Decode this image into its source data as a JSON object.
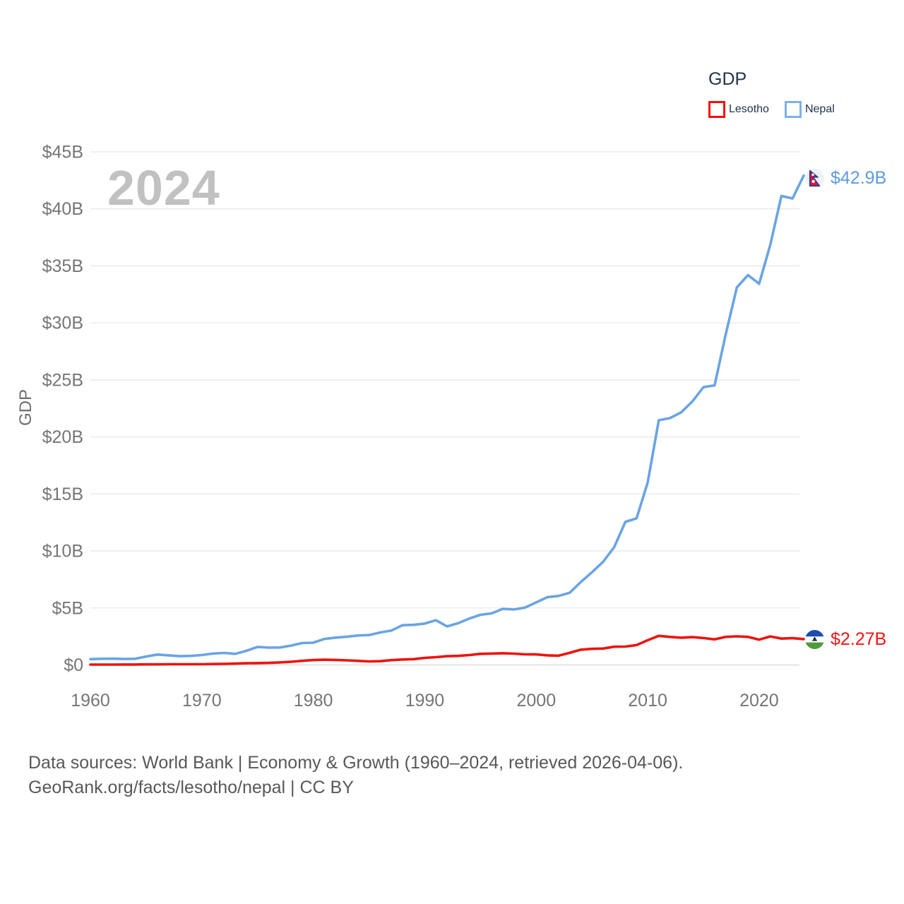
{
  "watermark": "2024",
  "legend": {
    "title": "GDP",
    "items": [
      {
        "label": "Lesotho",
        "color": "#f70d0d"
      },
      {
        "label": "Nepal",
        "color": "#7cb1e8"
      }
    ]
  },
  "end_labels": {
    "nepal": "$42.9B",
    "lesotho": "$2.27B"
  },
  "footer": {
    "line1": "Data sources: World Bank | Economy & Growth (1960–2024, retrieved 2026-04-06).",
    "line2": "GeoRank.org/facts/lesotho/nepal | CC BY"
  },
  "colors": {
    "nepal_line": "#6aa4e3",
    "lesotho_line": "#ec1310",
    "nepal_label": "#5d9be0",
    "lesotho_label": "#f51414",
    "grid": "#e6e6e6",
    "grid_zero": "#dcdcdc",
    "axis_text": "#757575",
    "watermark": "#c1c1c1",
    "legend_text": "#22334d",
    "footer_text": "#585858"
  },
  "chart_data": {
    "type": "line",
    "title": "GDP",
    "xlabel": "",
    "ylabel": "GDP",
    "grid": true,
    "legend_position": "top-right",
    "xlim": [
      1960,
      2024
    ],
    "ylim": [
      0,
      45
    ],
    "x_ticks": [
      1960,
      1970,
      1980,
      1990,
      2000,
      2010,
      2020
    ],
    "y_ticks": {
      "values": [
        0,
        5,
        10,
        15,
        20,
        25,
        30,
        35,
        40,
        45
      ],
      "labels": [
        "$0",
        "$5B",
        "$10B",
        "$15B",
        "$20B",
        "$25B",
        "$30B",
        "$35B",
        "$40B",
        "$45B"
      ]
    },
    "x": [
      1960,
      1961,
      1962,
      1963,
      1964,
      1965,
      1966,
      1967,
      1968,
      1969,
      1970,
      1971,
      1972,
      1973,
      1974,
      1975,
      1976,
      1977,
      1978,
      1979,
      1980,
      1981,
      1982,
      1983,
      1984,
      1985,
      1986,
      1987,
      1988,
      1989,
      1990,
      1991,
      1992,
      1993,
      1994,
      1995,
      1996,
      1997,
      1998,
      1999,
      2000,
      2001,
      2002,
      2003,
      2004,
      2005,
      2006,
      2007,
      2008,
      2009,
      2010,
      2011,
      2012,
      2013,
      2014,
      2015,
      2016,
      2017,
      2018,
      2019,
      2020,
      2021,
      2022,
      2023,
      2024
    ],
    "series": [
      {
        "name": "Lesotho",
        "color": "#ec1310",
        "unit": "billion USD",
        "values": [
          0.03,
          0.03,
          0.03,
          0.04,
          0.04,
          0.05,
          0.05,
          0.06,
          0.06,
          0.06,
          0.06,
          0.08,
          0.09,
          0.12,
          0.15,
          0.16,
          0.18,
          0.22,
          0.28,
          0.36,
          0.43,
          0.46,
          0.44,
          0.4,
          0.36,
          0.31,
          0.33,
          0.42,
          0.48,
          0.51,
          0.62,
          0.68,
          0.77,
          0.79,
          0.87,
          0.97,
          1.0,
          1.03,
          0.99,
          0.93,
          0.92,
          0.84,
          0.81,
          1.06,
          1.34,
          1.41,
          1.44,
          1.6,
          1.61,
          1.74,
          2.17,
          2.55,
          2.46,
          2.39,
          2.44,
          2.36,
          2.24,
          2.46,
          2.51,
          2.46,
          2.22,
          2.5,
          2.31,
          2.35,
          2.27
        ]
      },
      {
        "name": "Nepal",
        "color": "#6aa4e3",
        "unit": "billion USD",
        "values": [
          0.51,
          0.54,
          0.55,
          0.52,
          0.54,
          0.74,
          0.91,
          0.84,
          0.77,
          0.79,
          0.87,
          1.0,
          1.05,
          0.97,
          1.24,
          1.58,
          1.52,
          1.53,
          1.7,
          1.92,
          1.95,
          2.28,
          2.4,
          2.47,
          2.58,
          2.62,
          2.85,
          3.01,
          3.49,
          3.52,
          3.63,
          3.92,
          3.38,
          3.66,
          4.07,
          4.4,
          4.52,
          4.92,
          4.86,
          5.03,
          5.49,
          5.94,
          6.05,
          6.33,
          7.27,
          8.13,
          9.04,
          10.33,
          12.55,
          12.85,
          16.0,
          21.46,
          21.65,
          22.15,
          23.1,
          24.36,
          24.52,
          28.97,
          33.11,
          34.19,
          33.43,
          36.85,
          41.13,
          40.91,
          42.92
        ]
      }
    ],
    "end_values": {
      "Nepal": "$42.9B",
      "Lesotho": "$2.27B"
    }
  }
}
